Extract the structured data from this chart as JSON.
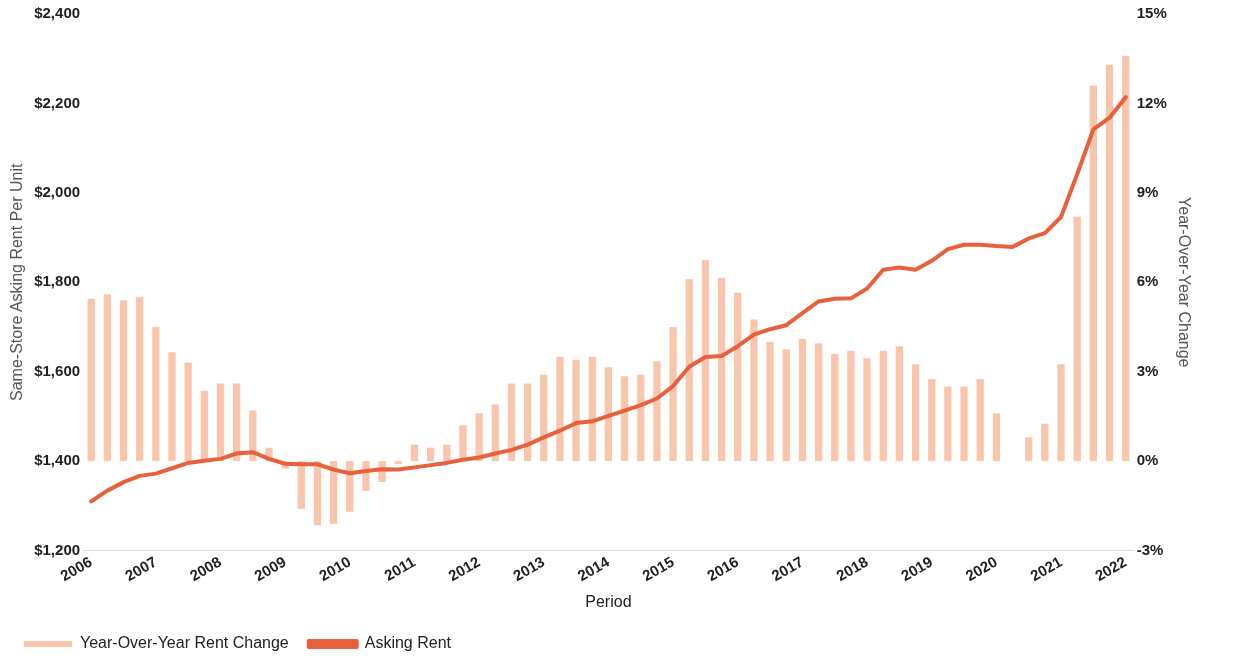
{
  "chart_data": {
    "type": "bar",
    "xlabel": "Period",
    "ylabel": "Same-Store Asking Rent Per Unit",
    "y2label": "Year-Over-Year Change",
    "categories": [
      "2006",
      null,
      null,
      null,
      "2007",
      null,
      null,
      null,
      "2008",
      null,
      null,
      null,
      "2009",
      null,
      null,
      null,
      "2010",
      null,
      null,
      null,
      "2011",
      null,
      null,
      null,
      "2012",
      null,
      null,
      null,
      "2013",
      null,
      null,
      null,
      "2014",
      null,
      null,
      null,
      "2015",
      null,
      null,
      null,
      "2016",
      null,
      null,
      null,
      "2017",
      null,
      null,
      null,
      "2018",
      null,
      null,
      null,
      "2019",
      null,
      null,
      null,
      "2020",
      null,
      null,
      null,
      "2021",
      null,
      null,
      null,
      "2022"
    ],
    "series": [
      {
        "name": "Year-Over-Year Rent Change",
        "axis": "y2",
        "color": "#f9c6ad",
        "values": [
          5.45,
          5.6,
          5.4,
          5.5,
          4.5,
          3.65,
          3.3,
          2.35,
          2.6,
          2.6,
          1.7,
          0.45,
          -0.25,
          -1.6,
          -2.15,
          -2.1,
          -1.7,
          -1.0,
          -0.7,
          -0.1,
          0.55,
          0.45,
          0.55,
          1.2,
          1.6,
          1.9,
          2.6,
          2.6,
          2.9,
          3.5,
          3.4,
          3.5,
          3.15,
          2.85,
          2.9,
          3.35,
          4.5,
          6.1,
          6.75,
          6.15,
          5.65,
          4.75,
          4.0,
          3.75,
          4.1,
          3.95,
          3.6,
          3.7,
          3.45,
          3.7,
          3.85,
          3.25,
          2.75,
          2.5,
          2.5,
          2.75,
          1.6,
          0,
          0.8,
          1.25,
          3.25,
          8.2,
          12.6,
          13.3,
          13.6
        ]
      },
      {
        "name": "Asking Rent",
        "type": "line",
        "axis": "y",
        "color": "#e8613c",
        "values": [
          1310,
          1334,
          1353,
          1367,
          1372,
          1384,
          1396,
          1401,
          1405,
          1417,
          1420,
          1405,
          1394,
          1393,
          1393,
          1381,
          1373,
          1378,
          1382,
          1381,
          1386,
          1391,
          1396,
          1403,
          1408,
          1417,
          1425,
          1437,
          1453,
          1468,
          1485,
          1489,
          1501,
          1513,
          1525,
          1540,
          1568,
          1611,
          1633,
          1635,
          1657,
          1683,
          1695,
          1704,
          1731,
          1757,
          1763,
          1764,
          1786,
          1828,
          1833,
          1828,
          1848,
          1874,
          1884,
          1884,
          1881,
          1879,
          1898,
          1910,
          1946,
          2042,
          2142,
          2168,
          2214
        ]
      }
    ],
    "ylim": [
      1200,
      2400
    ],
    "yticks": [
      {
        "value": 1200,
        "label": "$1,200"
      },
      {
        "value": 1400,
        "label": "$1,400"
      },
      {
        "value": 1600,
        "label": "$1,600"
      },
      {
        "value": 1800,
        "label": "$1,800"
      },
      {
        "value": 2000,
        "label": "$2,000"
      },
      {
        "value": 2200,
        "label": "$2,200"
      },
      {
        "value": 2400,
        "label": "$2,400"
      }
    ],
    "y2lim": [
      -3,
      15
    ],
    "y2ticks": [
      {
        "value": -3,
        "label": "-3%"
      },
      {
        "value": 0,
        "label": "0%"
      },
      {
        "value": 3,
        "label": "3%"
      },
      {
        "value": 6,
        "label": "6%"
      },
      {
        "value": 9,
        "label": "9%"
      },
      {
        "value": 12,
        "label": "12%"
      },
      {
        "value": 15,
        "label": "15%"
      }
    ],
    "grid": false,
    "legend": "bottom left",
    "marker": "none",
    "line_style": "solid"
  }
}
